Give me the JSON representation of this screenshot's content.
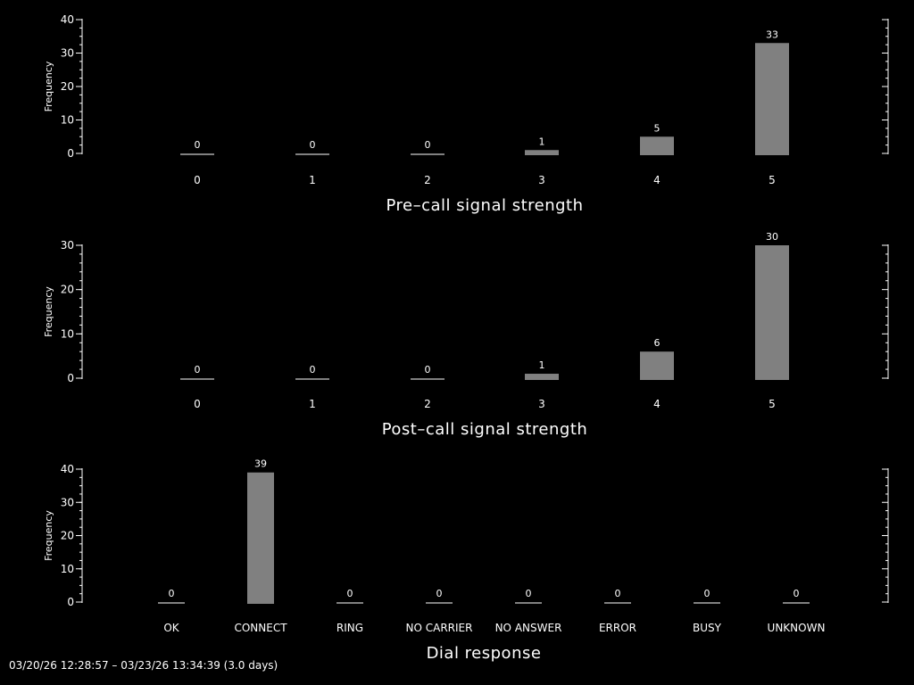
{
  "page": {
    "footer": "03/20/26 12:28:57 – 03/23/26 13:34:39 (3.0 days)"
  },
  "colors": {
    "background": "#000000",
    "bar": "#808080",
    "text": "#ffffff",
    "axis": "#ffffff"
  },
  "chart_data": [
    {
      "type": "bar",
      "categories": [
        "0",
        "1",
        "2",
        "3",
        "4",
        "5"
      ],
      "values": [
        0,
        0,
        0,
        1,
        5,
        33
      ],
      "data_labels": [
        "0",
        "0",
        "0",
        "1",
        "5",
        "33"
      ],
      "xlabel": "Pre–call signal strength",
      "ylabel": "Frequency",
      "yticks": [
        0,
        10,
        20,
        30,
        40
      ],
      "ylim": [
        0,
        40
      ],
      "grid": false
    },
    {
      "type": "bar",
      "categories": [
        "0",
        "1",
        "2",
        "3",
        "4",
        "5"
      ],
      "values": [
        0,
        0,
        0,
        1,
        6,
        30
      ],
      "data_labels": [
        "0",
        "0",
        "0",
        "1",
        "6",
        "30"
      ],
      "xlabel": "Post–call signal strength",
      "ylabel": "Frequency",
      "yticks": [
        0,
        10,
        20,
        30
      ],
      "ylim": [
        0,
        30
      ],
      "grid": false
    },
    {
      "type": "bar",
      "categories": [
        "OK",
        "CONNECT",
        "RING",
        "NO CARRIER",
        "NO ANSWER",
        "ERROR",
        "BUSY",
        "UNKNOWN"
      ],
      "values": [
        0,
        39,
        0,
        0,
        0,
        0,
        0,
        0
      ],
      "data_labels": [
        "0",
        "39",
        "0",
        "0",
        "0",
        "0",
        "0",
        "0"
      ],
      "xlabel": "Dial response",
      "ylabel": "Frequency",
      "yticks": [
        0,
        10,
        20,
        30,
        40
      ],
      "ylim": [
        0,
        40
      ],
      "grid": false
    }
  ]
}
